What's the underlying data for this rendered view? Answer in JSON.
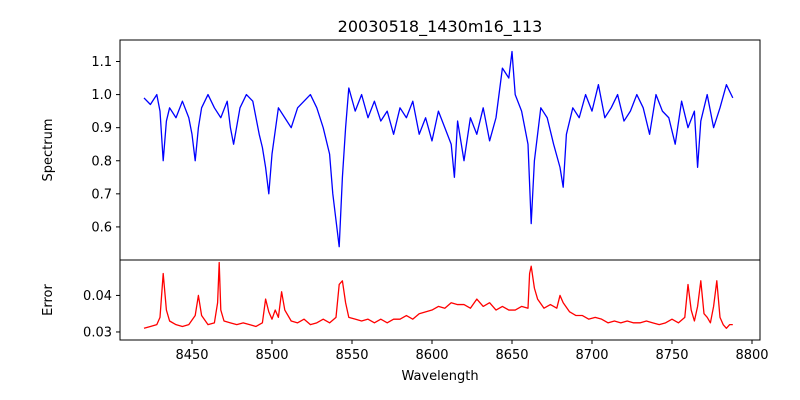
{
  "chart_data": {
    "type": "line",
    "title": "20030518_1430m16_113",
    "xlabel": "Wavelength",
    "x_ticks": [
      8450,
      8500,
      8550,
      8600,
      8650,
      8700,
      8750,
      8800
    ],
    "xlim": [
      8405,
      8805
    ],
    "panels": [
      {
        "name": "spectrum",
        "ylabel": "Spectrum",
        "ylim": [
          0.5,
          1.165
        ],
        "y_ticks": [
          0.6,
          0.7,
          0.8,
          0.9,
          1.0,
          1.1
        ],
        "y_tick_labels": [
          "0.6",
          "0.7",
          "0.8",
          "0.9",
          "1.0",
          "1.1"
        ],
        "color": "#0000ff",
        "x": [
          8420,
          8424,
          8428,
          8430,
          8432,
          8434,
          8436,
          8440,
          8444,
          8448,
          8450,
          8452,
          8454,
          8456,
          8460,
          8464,
          8468,
          8472,
          8474,
          8476,
          8480,
          8484,
          8488,
          8492,
          8494,
          8496,
          8498,
          8500,
          8504,
          8508,
          8512,
          8516,
          8520,
          8524,
          8528,
          8532,
          8536,
          8538,
          8540,
          8542,
          8544,
          8546,
          8548,
          8552,
          8556,
          8560,
          8564,
          8568,
          8572,
          8576,
          8580,
          8584,
          8588,
          8592,
          8596,
          8600,
          8604,
          8608,
          8612,
          8614,
          8616,
          8620,
          8624,
          8628,
          8632,
          8636,
          8640,
          8644,
          8648,
          8650,
          8652,
          8656,
          8660,
          8662,
          8664,
          8668,
          8672,
          8676,
          8680,
          8682,
          8684,
          8688,
          8692,
          8696,
          8700,
          8704,
          8708,
          8712,
          8716,
          8720,
          8724,
          8728,
          8732,
          8736,
          8740,
          8744,
          8748,
          8752,
          8756,
          8760,
          8764,
          8766,
          8768,
          8772,
          8776,
          8780,
          8784,
          8788
        ],
        "y": [
          0.99,
          0.97,
          1.0,
          0.95,
          0.8,
          0.92,
          0.96,
          0.93,
          0.98,
          0.93,
          0.88,
          0.8,
          0.9,
          0.96,
          1.0,
          0.96,
          0.93,
          0.98,
          0.9,
          0.85,
          0.96,
          1.0,
          0.98,
          0.88,
          0.84,
          0.78,
          0.7,
          0.82,
          0.96,
          0.93,
          0.9,
          0.96,
          0.98,
          1.0,
          0.96,
          0.9,
          0.82,
          0.7,
          0.62,
          0.54,
          0.75,
          0.9,
          1.02,
          0.95,
          1.0,
          0.93,
          0.98,
          0.92,
          0.95,
          0.88,
          0.96,
          0.93,
          0.98,
          0.88,
          0.93,
          0.86,
          0.95,
          0.9,
          0.85,
          0.75,
          0.92,
          0.8,
          0.93,
          0.88,
          0.96,
          0.86,
          0.93,
          1.08,
          1.05,
          1.13,
          1.0,
          0.95,
          0.85,
          0.61,
          0.8,
          0.96,
          0.93,
          0.85,
          0.78,
          0.72,
          0.88,
          0.96,
          0.93,
          1.0,
          0.95,
          1.03,
          0.93,
          0.96,
          1.0,
          0.92,
          0.95,
          1.0,
          0.96,
          0.88,
          1.0,
          0.95,
          0.93,
          0.85,
          0.98,
          0.9,
          0.95,
          0.78,
          0.92,
          1.0,
          0.9,
          0.96,
          1.03,
          0.99
        ]
      },
      {
        "name": "error",
        "ylabel": "Error",
        "ylim": [
          0.0278,
          0.0497
        ],
        "y_ticks": [
          0.03,
          0.04
        ],
        "y_tick_labels": [
          "0.03",
          "0.04"
        ],
        "color": "#ff0000",
        "x": [
          8420,
          8424,
          8428,
          8430,
          8432,
          8434,
          8436,
          8440,
          8444,
          8448,
          8452,
          8454,
          8456,
          8460,
          8464,
          8466,
          8467,
          8468,
          8470,
          8474,
          8478,
          8482,
          8486,
          8490,
          8494,
          8496,
          8498,
          8500,
          8502,
          8504,
          8506,
          8508,
          8512,
          8516,
          8520,
          8524,
          8528,
          8532,
          8536,
          8540,
          8542,
          8544,
          8546,
          8548,
          8552,
          8556,
          8560,
          8564,
          8568,
          8572,
          8576,
          8580,
          8584,
          8588,
          8592,
          8596,
          8600,
          8604,
          8608,
          8612,
          8616,
          8620,
          8624,
          8628,
          8632,
          8636,
          8640,
          8644,
          8648,
          8652,
          8656,
          8660,
          8661,
          8662,
          8664,
          8666,
          8670,
          8674,
          8678,
          8680,
          8682,
          8686,
          8690,
          8694,
          8698,
          8702,
          8706,
          8710,
          8714,
          8718,
          8722,
          8726,
          8730,
          8734,
          8738,
          8742,
          8746,
          8750,
          8754,
          8758,
          8760,
          8762,
          8764,
          8766,
          8768,
          8770,
          8772,
          8774,
          8776,
          8778,
          8780,
          8782,
          8784,
          8786,
          8788
        ],
        "y": [
          0.031,
          0.0315,
          0.032,
          0.034,
          0.046,
          0.036,
          0.033,
          0.032,
          0.0315,
          0.032,
          0.0345,
          0.04,
          0.0345,
          0.032,
          0.0325,
          0.038,
          0.049,
          0.036,
          0.033,
          0.0325,
          0.032,
          0.0325,
          0.032,
          0.0315,
          0.0325,
          0.039,
          0.0355,
          0.0335,
          0.036,
          0.034,
          0.041,
          0.036,
          0.033,
          0.0325,
          0.0335,
          0.032,
          0.0325,
          0.0335,
          0.0325,
          0.034,
          0.043,
          0.044,
          0.038,
          0.034,
          0.0335,
          0.033,
          0.0335,
          0.0325,
          0.0335,
          0.0325,
          0.0335,
          0.0335,
          0.0345,
          0.0335,
          0.035,
          0.0355,
          0.036,
          0.037,
          0.0365,
          0.038,
          0.0375,
          0.0375,
          0.0365,
          0.039,
          0.037,
          0.038,
          0.036,
          0.037,
          0.036,
          0.036,
          0.037,
          0.0365,
          0.046,
          0.048,
          0.042,
          0.039,
          0.0365,
          0.0375,
          0.0365,
          0.04,
          0.038,
          0.0355,
          0.0345,
          0.0345,
          0.0335,
          0.034,
          0.0335,
          0.0325,
          0.033,
          0.0325,
          0.033,
          0.0325,
          0.0325,
          0.033,
          0.0325,
          0.032,
          0.0325,
          0.0335,
          0.0325,
          0.034,
          0.043,
          0.036,
          0.033,
          0.037,
          0.044,
          0.035,
          0.034,
          0.0325,
          0.037,
          0.044,
          0.034,
          0.032,
          0.031,
          0.032,
          0.032
        ]
      }
    ]
  }
}
